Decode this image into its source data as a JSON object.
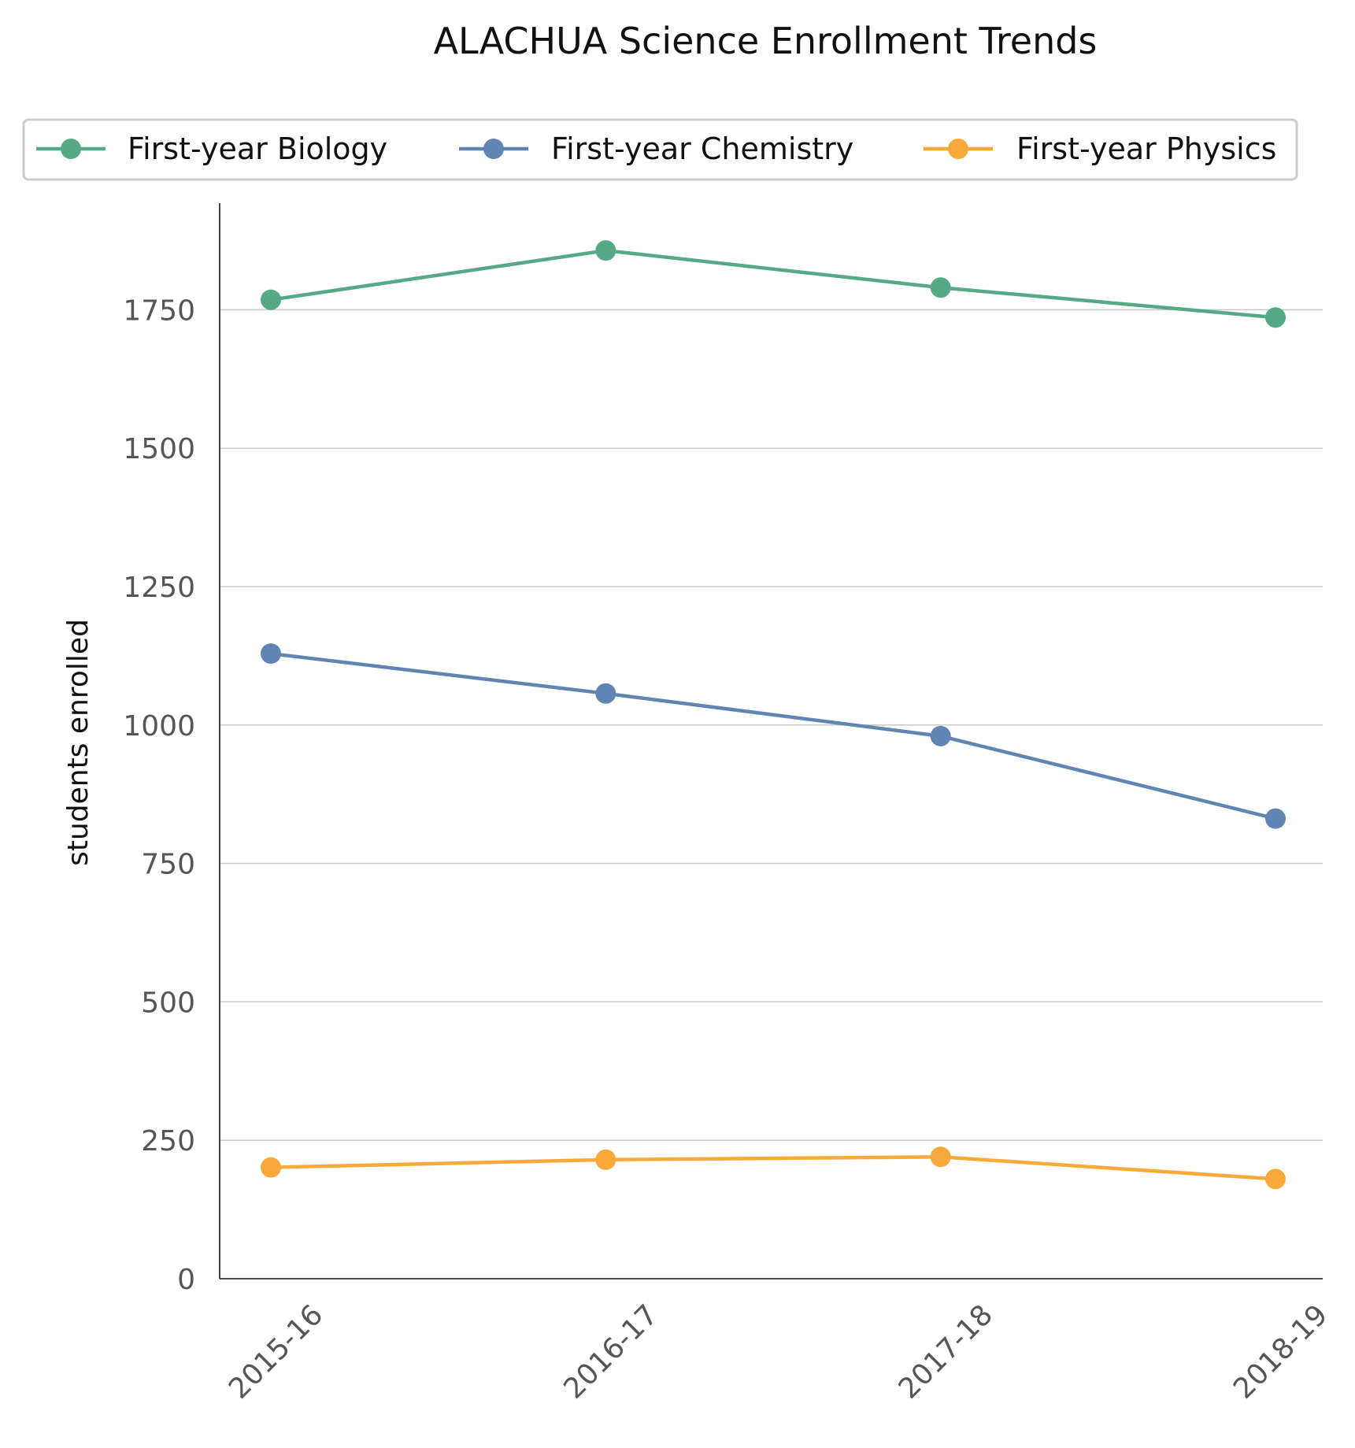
{
  "chart_data": {
    "type": "line",
    "title": "ALACHUA Science Enrollment Trends",
    "xlabel": "",
    "ylabel": "students enrolled",
    "categories": [
      "2015-16",
      "2016-17",
      "2017-18",
      "2018-19"
    ],
    "ylim": [
      0,
      1950
    ],
    "yticks": [
      0,
      250,
      500,
      750,
      1000,
      1250,
      1500,
      1750
    ],
    "grid": "horizontal",
    "legend_position": "top",
    "series": [
      {
        "name": "First-year Biology",
        "color": "#55aa85",
        "values": [
          1768,
          1857,
          1790,
          1736
        ]
      },
      {
        "name": "First-year Chemistry",
        "color": "#6185b2",
        "values": [
          1129,
          1057,
          980,
          831
        ]
      },
      {
        "name": "First-year Physics",
        "color": "#f9a93a",
        "values": [
          201,
          215,
          220,
          180
        ]
      }
    ]
  }
}
